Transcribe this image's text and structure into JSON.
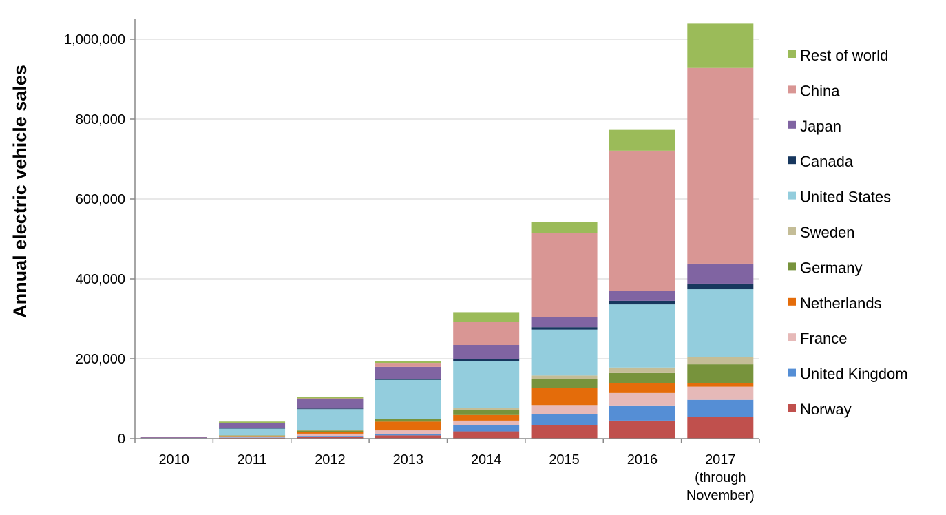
{
  "chart_data": {
    "type": "bar",
    "stacked": true,
    "xlabel": "",
    "ylabel": "Annual electric vehicle sales",
    "ylim": [
      0,
      1050000
    ],
    "yticks": [
      0,
      200000,
      400000,
      600000,
      800000,
      1000000
    ],
    "ytick_labels": [
      "0",
      "200,000",
      "400,000",
      "600,000",
      "800,000",
      "1,000,000"
    ],
    "grid": true,
    "legend_position": "right",
    "categories": [
      {
        "lines": [
          "2010"
        ]
      },
      {
        "lines": [
          "2011"
        ]
      },
      {
        "lines": [
          "2012"
        ]
      },
      {
        "lines": [
          "2013"
        ]
      },
      {
        "lines": [
          "2014"
        ]
      },
      {
        "lines": [
          "2015"
        ]
      },
      {
        "lines": [
          "2016"
        ]
      },
      {
        "lines": [
          "2017",
          "(through",
          "November)"
        ]
      }
    ],
    "series": [
      {
        "name": "Norway",
        "color": "#c0504d",
        "values": [
          400,
          2000,
          4500,
          8000,
          18000,
          34000,
          45000,
          55000
        ]
      },
      {
        "name": "United Kingdom",
        "color": "#558ed5",
        "values": [
          200,
          1000,
          2200,
          3500,
          15000,
          28000,
          38000,
          42000
        ]
      },
      {
        "name": "France",
        "color": "#e6b9b8",
        "values": [
          200,
          2500,
          5500,
          9000,
          12000,
          22000,
          31000,
          33000
        ]
      },
      {
        "name": "Netherlands",
        "color": "#e46c0a",
        "values": [
          100,
          1000,
          5000,
          22000,
          14000,
          42000,
          25000,
          8000
        ]
      },
      {
        "name": "Germany",
        "color": "#77933c",
        "values": [
          200,
          1500,
          2700,
          6000,
          13000,
          23000,
          25000,
          48000
        ]
      },
      {
        "name": "Sweden",
        "color": "#c4bd97",
        "values": [
          0,
          200,
          900,
          1500,
          4500,
          9000,
          14000,
          18000
        ]
      },
      {
        "name": "United States",
        "color": "#93cddd",
        "values": [
          300,
          17000,
          53000,
          97000,
          118000,
          115000,
          158000,
          170000
        ]
      },
      {
        "name": "Canada",
        "color": "#17375e",
        "values": [
          0,
          500,
          1500,
          2500,
          4000,
          6000,
          9000,
          14000
        ]
      },
      {
        "name": "Japan",
        "color": "#8064a2",
        "values": [
          2000,
          13000,
          23000,
          30000,
          36000,
          25000,
          24000,
          50000
        ]
      },
      {
        "name": "China",
        "color": "#d99694",
        "values": [
          500,
          1000,
          2500,
          10000,
          57000,
          210000,
          352000,
          490000
        ]
      },
      {
        "name": "Rest of world",
        "color": "#9bbb59",
        "values": [
          500,
          3000,
          3500,
          5000,
          25000,
          29000,
          52000,
          111000
        ]
      }
    ]
  }
}
